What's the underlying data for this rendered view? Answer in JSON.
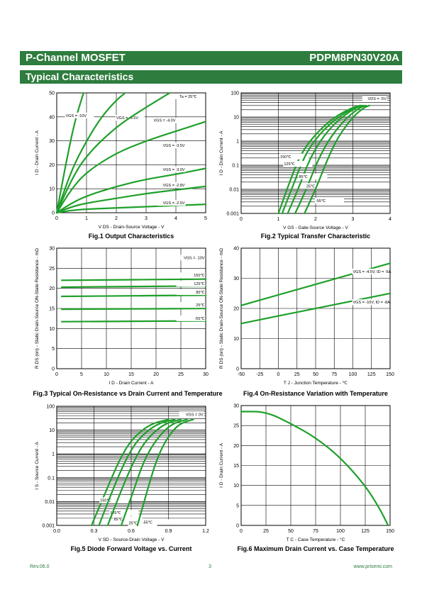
{
  "header": {
    "title": "P-Channel MOSFET",
    "part_number": "PDPM8PN30V20A"
  },
  "section": {
    "title": "Typical Characteristics"
  },
  "footer": {
    "rev": "Rev.06.0",
    "page": "3",
    "url": "www.prisemi.com"
  },
  "colors": {
    "accent": "#2e7d3e",
    "curve": "#1fa02a"
  },
  "chart_data": [
    {
      "id": "fig1",
      "type": "line",
      "caption": "Fig.1 Output Characteristics",
      "xlabel": "V DS - Drain-Source Voltage - V",
      "ylabel": "I D - Drain Current - A",
      "xlim": [
        0,
        5
      ],
      "ylim": [
        0,
        50
      ],
      "xticks": [
        "0",
        "1",
        "2",
        "3",
        "4",
        "5"
      ],
      "yticks": [
        "0",
        "10",
        "20",
        "30",
        "40",
        "50"
      ],
      "annotations": [
        "Ta = 25℃"
      ],
      "series": [
        {
          "name": "VGS = -10V",
          "points": [
            [
              0,
              0
            ],
            [
              0.3,
              20
            ],
            [
              0.6,
              38
            ],
            [
              0.9,
              50
            ]
          ]
        },
        {
          "name": "VGS = -4.5V",
          "points": [
            [
              0,
              0
            ],
            [
              0.5,
              18
            ],
            [
              1,
              30
            ],
            [
              1.5,
              40
            ],
            [
              2,
              47
            ],
            [
              2.3,
              50
            ]
          ]
        },
        {
          "name": "VGS = -4.0V",
          "points": [
            [
              0,
              0
            ],
            [
              0.5,
              14
            ],
            [
              1,
              24
            ],
            [
              2,
              36
            ],
            [
              3,
              44
            ],
            [
              3.8,
              50
            ]
          ]
        },
        {
          "name": "VGS = -3.5V",
          "points": [
            [
              0,
              0
            ],
            [
              0.5,
              10
            ],
            [
              1,
              17
            ],
            [
              2,
              25
            ],
            [
              3,
              30
            ],
            [
              4,
              34
            ],
            [
              5,
              38
            ]
          ]
        },
        {
          "name": "VGS = -3.0V",
          "points": [
            [
              0,
              0
            ],
            [
              0.5,
              4
            ],
            [
              1,
              7
            ],
            [
              2,
              11
            ],
            [
              3,
              14
            ],
            [
              4,
              16
            ],
            [
              5,
              18.5
            ]
          ]
        },
        {
          "name": "VGS = -2.8V",
          "points": [
            [
              0,
              0
            ],
            [
              0.5,
              2.5
            ],
            [
              1,
              4
            ],
            [
              2,
              6
            ],
            [
              3,
              8
            ],
            [
              4,
              9.5
            ],
            [
              5,
              11
            ]
          ]
        },
        {
          "name": "VGS = -2.5V",
          "points": [
            [
              0,
              0
            ],
            [
              0.5,
              1
            ],
            [
              1,
              1.5
            ],
            [
              2,
              2
            ],
            [
              3,
              2.5
            ],
            [
              4,
              3
            ],
            [
              5,
              3.5
            ]
          ]
        }
      ]
    },
    {
      "id": "fig2",
      "type": "line",
      "caption": "Fig.2 Typical Transfer Characteristic",
      "xlabel": "V GS - Gate-Source Voltage - V",
      "ylabel": "I D - Drain Current - A",
      "xlim": [
        0,
        4
      ],
      "ylim": [
        0.001,
        100
      ],
      "log_y": true,
      "xticks": [
        "0",
        "1",
        "2",
        "3",
        "4"
      ],
      "yticks": [
        "0.001",
        "0.01",
        "0.1",
        "1",
        "10",
        "100"
      ],
      "annotations": [
        "VDS = -5V"
      ],
      "series": [
        {
          "name": "150℃",
          "points": [
            [
              1,
              0.001
            ],
            [
              1.3,
              0.02
            ],
            [
              1.6,
              0.3
            ],
            [
              2,
              2
            ],
            [
              2.5,
              10
            ],
            [
              3,
              25
            ],
            [
              3.2,
              30
            ]
          ]
        },
        {
          "name": "125℃",
          "points": [
            [
              1.1,
              0.001
            ],
            [
              1.4,
              0.015
            ],
            [
              1.7,
              0.25
            ],
            [
              2.1,
              2
            ],
            [
              2.6,
              10
            ],
            [
              3.05,
              25
            ],
            [
              3.25,
              30
            ]
          ]
        },
        {
          "name": "85℃",
          "points": [
            [
              1.25,
              0.001
            ],
            [
              1.55,
              0.012
            ],
            [
              1.85,
              0.2
            ],
            [
              2.25,
              2
            ],
            [
              2.7,
              10
            ],
            [
              3.1,
              25
            ],
            [
              3.3,
              30
            ]
          ]
        },
        {
          "name": "25℃",
          "points": [
            [
              1.45,
              0.001
            ],
            [
              1.75,
              0.01
            ],
            [
              2.05,
              0.15
            ],
            [
              2.4,
              1.5
            ],
            [
              2.85,
              10
            ],
            [
              3.2,
              25
            ],
            [
              3.35,
              30
            ]
          ]
        },
        {
          "name": "-55℃",
          "points": [
            [
              1.7,
              0.001
            ],
            [
              2,
              0.01
            ],
            [
              2.3,
              0.15
            ],
            [
              2.6,
              1.5
            ],
            [
              3,
              10
            ],
            [
              3.3,
              25
            ],
            [
              3.45,
              30
            ]
          ]
        }
      ]
    },
    {
      "id": "fig3",
      "type": "line",
      "caption": "Fig.3 Typical On-Resistance  vs Drain Current and Temperature",
      "xlabel": "I D - Drain Current - A",
      "ylabel": "R DS (on) - Static Drain-Source ON-State Resistance - mΩ",
      "xlim": [
        0,
        30
      ],
      "ylim": [
        0,
        30
      ],
      "xticks": [
        "0",
        "5",
        "10",
        "15",
        "20",
        "25",
        "30"
      ],
      "yticks": [
        "0",
        "5",
        "10",
        "15",
        "20",
        "25",
        "30"
      ],
      "annotations": [
        "VGS = -10V"
      ],
      "series": [
        {
          "name": "150℃",
          "points": [
            [
              1,
              22
            ],
            [
              30,
              22.3
            ]
          ]
        },
        {
          "name": "125℃",
          "points": [
            [
              1,
              20.3
            ],
            [
              30,
              20.6
            ]
          ]
        },
        {
          "name": "85℃",
          "points": [
            [
              1,
              18
            ],
            [
              30,
              18.3
            ]
          ]
        },
        {
          "name": "25℃",
          "points": [
            [
              1,
              14.8
            ],
            [
              30,
              15
            ]
          ]
        },
        {
          "name": "-55℃",
          "points": [
            [
              1,
              11.7
            ],
            [
              30,
              11.9
            ]
          ]
        }
      ]
    },
    {
      "id": "fig4",
      "type": "line",
      "caption": "Fig.4 On-Resistance Variation with Temperature",
      "xlabel": "T J - Junction Temperature - ℃",
      "ylabel": "R DS (on) - Static Drain-Source ON-State Resistance - mΩ",
      "xlim": [
        -50,
        150
      ],
      "ylim": [
        0,
        40
      ],
      "xticks": [
        "-50",
        "-25",
        "0",
        "25",
        "50",
        "75",
        "100",
        "125",
        "150"
      ],
      "yticks": [
        "0",
        "10",
        "20",
        "30",
        "40"
      ],
      "series": [
        {
          "name": "VGS = -4.5V, ID = -5A",
          "points": [
            [
              -50,
              21
            ],
            [
              0,
              24.5
            ],
            [
              50,
              28
            ],
            [
              100,
              31.5
            ],
            [
              150,
              35
            ]
          ]
        },
        {
          "name": "VGS = -10V, ID = -8A",
          "points": [
            [
              -50,
              15
            ],
            [
              0,
              17.5
            ],
            [
              50,
              20
            ],
            [
              100,
              22.5
            ],
            [
              150,
              25
            ]
          ]
        }
      ]
    },
    {
      "id": "fig5",
      "type": "line",
      "caption": "Fig.5 Diode Forward Voltage vs. Current",
      "xlabel": "V SD - Source-Drain Voltage - V",
      "ylabel": "I S - Source Current - A",
      "xlim": [
        0,
        1.2
      ],
      "ylim": [
        0.001,
        100
      ],
      "log_y": true,
      "xticks": [
        "0.0",
        "0.3",
        "0.6",
        "0.9",
        "1.2"
      ],
      "yticks": [
        "0.001",
        "0.01",
        "0.1",
        "1",
        "10",
        "100"
      ],
      "annotations": [
        "VGS = 0V"
      ],
      "series": [
        {
          "name": "150℃",
          "points": [
            [
              0.28,
              0.001
            ],
            [
              0.4,
              0.03
            ],
            [
              0.5,
              0.5
            ],
            [
              0.6,
              4
            ],
            [
              0.75,
              18
            ],
            [
              0.9,
              28
            ]
          ]
        },
        {
          "name": "125℃",
          "points": [
            [
              0.34,
              0.001
            ],
            [
              0.45,
              0.03
            ],
            [
              0.55,
              0.5
            ],
            [
              0.65,
              4
            ],
            [
              0.8,
              18
            ],
            [
              0.95,
              28
            ]
          ]
        },
        {
          "name": "85℃",
          "points": [
            [
              0.41,
              0.001
            ],
            [
              0.52,
              0.03
            ],
            [
              0.62,
              0.5
            ],
            [
              0.72,
              4
            ],
            [
              0.86,
              18
            ],
            [
              1.0,
              28
            ]
          ]
        },
        {
          "name": "25℃",
          "points": [
            [
              0.52,
              0.001
            ],
            [
              0.62,
              0.03
            ],
            [
              0.7,
              0.5
            ],
            [
              0.8,
              4
            ],
            [
              0.92,
              18
            ],
            [
              1.05,
              28
            ]
          ]
        },
        {
          "name": "-55℃",
          "points": [
            [
              0.65,
              0.001
            ],
            [
              0.73,
              0.03
            ],
            [
              0.8,
              0.5
            ],
            [
              0.88,
              4
            ],
            [
              0.98,
              18
            ],
            [
              1.1,
              28
            ]
          ]
        }
      ]
    },
    {
      "id": "fig6",
      "type": "line",
      "caption": "Fig.6 Maximum Drain Current vs. Case Temperature",
      "xlabel": "T C - Case Temperature - °C",
      "ylabel": "I D - Drain Current - A",
      "xlim": [
        0,
        150
      ],
      "ylim": [
        0,
        30
      ],
      "xticks": [
        "0",
        "25",
        "50",
        "75",
        "100",
        "125",
        "150"
      ],
      "yticks": [
        "0",
        "5",
        "10",
        "15",
        "20",
        "25",
        "30"
      ],
      "series": [
        {
          "name": "",
          "points": [
            [
              0,
              28.5
            ],
            [
              25,
              28.5
            ],
            [
              50,
              25.5
            ],
            [
              75,
              22
            ],
            [
              100,
              17
            ],
            [
              125,
              10
            ],
            [
              140,
              4
            ],
            [
              148,
              0
            ]
          ]
        }
      ]
    }
  ]
}
